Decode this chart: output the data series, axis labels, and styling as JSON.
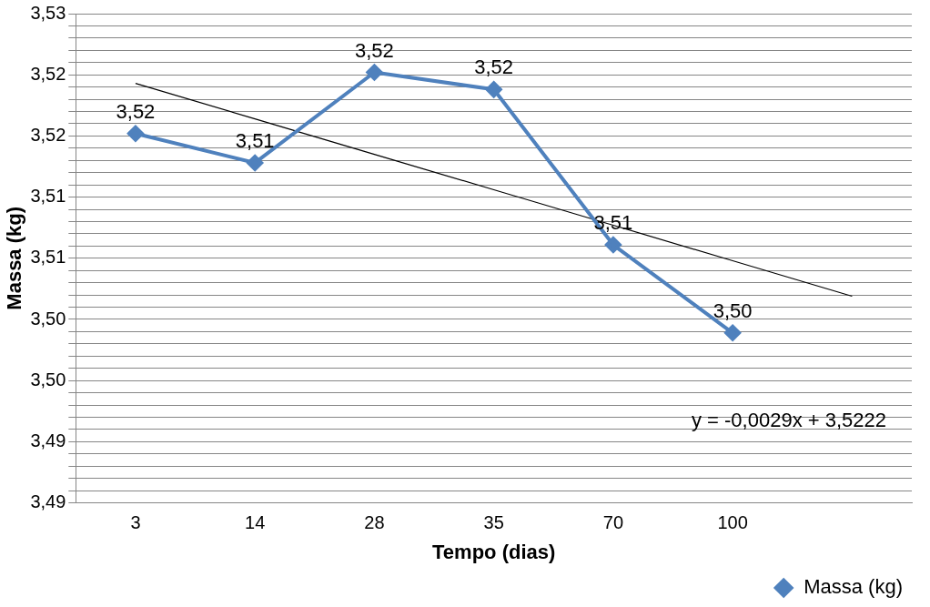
{
  "chart_data": {
    "type": "line",
    "xlabel": "Tempo (dias)",
    "ylabel": "Massa (kg)",
    "categories": [
      "3",
      "14",
      "28",
      "35",
      "70",
      "100",
      null
    ],
    "series": [
      {
        "name": "Massa (kg)",
        "color": "#4f81bd",
        "values": [
          3.5152,
          3.5128,
          3.5202,
          3.5188,
          3.5061,
          3.4989,
          null
        ],
        "value_labels": [
          "3,52",
          "3,51",
          "3,52",
          "3,52",
          "3,51",
          "3,50",
          null
        ],
        "marker": "diamond"
      },
      {
        "type": "line",
        "color": "#000000",
        "values": [
          3.5193,
          3.5164,
          3.5135,
          3.5106,
          3.5077,
          3.5048,
          3.5019
        ],
        "marker": "none"
      }
    ],
    "ylim": [
      3.485,
      3.525
    ],
    "yticks": [
      {
        "value": 3.485,
        "label": "3,49"
      },
      {
        "value": 3.486,
        "label": null
      },
      {
        "value": 3.487,
        "label": null
      },
      {
        "value": 3.488,
        "label": null
      },
      {
        "value": 3.489,
        "label": null
      },
      {
        "value": 3.49,
        "label": "3,49"
      },
      {
        "value": 3.491,
        "label": null
      },
      {
        "value": 3.492,
        "label": null
      },
      {
        "value": 3.493,
        "label": null
      },
      {
        "value": 3.494,
        "label": null
      },
      {
        "value": 3.495,
        "label": "3,50"
      },
      {
        "value": 3.496,
        "label": null
      },
      {
        "value": 3.497,
        "label": null
      },
      {
        "value": 3.498,
        "label": null
      },
      {
        "value": 3.499,
        "label": null
      },
      {
        "value": 3.5,
        "label": "3,50"
      },
      {
        "value": 3.501,
        "label": null
      },
      {
        "value": 3.502,
        "label": null
      },
      {
        "value": 3.503,
        "label": null
      },
      {
        "value": 3.504,
        "label": null
      },
      {
        "value": 3.505,
        "label": "3,51"
      },
      {
        "value": 3.506,
        "label": null
      },
      {
        "value": 3.507,
        "label": null
      },
      {
        "value": 3.508,
        "label": null
      },
      {
        "value": 3.509,
        "label": null
      },
      {
        "value": 3.51,
        "label": "3,51"
      },
      {
        "value": 3.511,
        "label": null
      },
      {
        "value": 3.512,
        "label": null
      },
      {
        "value": 3.513,
        "label": null
      },
      {
        "value": 3.514,
        "label": null
      },
      {
        "value": 3.515,
        "label": "3,52"
      },
      {
        "value": 3.516,
        "label": null
      },
      {
        "value": 3.517,
        "label": null
      },
      {
        "value": 3.518,
        "label": null
      },
      {
        "value": 3.519,
        "label": null
      },
      {
        "value": 3.52,
        "label": "3,52"
      },
      {
        "value": 3.521,
        "label": null
      },
      {
        "value": 3.522,
        "label": null
      },
      {
        "value": 3.523,
        "label": null
      },
      {
        "value": 3.524,
        "label": null
      },
      {
        "value": 3.525,
        "label": "3,53"
      }
    ],
    "grid": "y",
    "legend": "bottom right",
    "annotations": [
      "y = -0,0029x + 3,5222"
    ]
  }
}
